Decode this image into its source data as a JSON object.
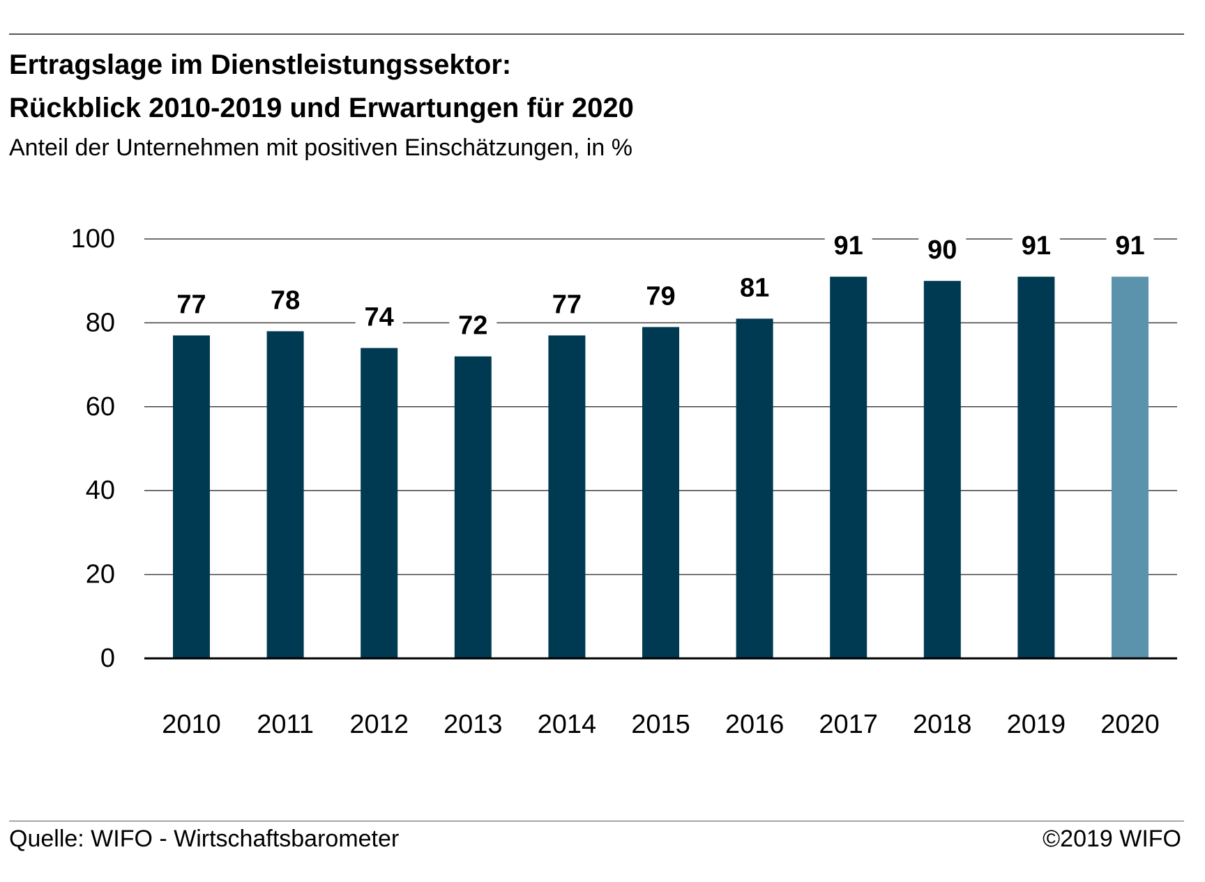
{
  "header": {
    "title_line1": "Ertragslage im Dienstleistungssektor:",
    "title_line2": "Rückblick 2010-2019 und Erwartungen für 2020",
    "subtitle": "Anteil der Unternehmen mit positiven Einschätzungen, in %"
  },
  "footer": {
    "source": "Quelle: WIFO - Wirtschaftsbarometer",
    "copyright": "©2019 WIFO"
  },
  "colors": {
    "bar": "#003a52",
    "bar_forecast": "#5a93ab",
    "grid": "#404040",
    "axis": "#000000",
    "text": "#000000"
  },
  "chart_data": {
    "type": "bar",
    "title": "Ertragslage im Dienstleistungssektor: Rückblick 2010-2019 und Erwartungen für 2020",
    "subtitle": "Anteil der Unternehmen mit positiven Einschätzungen, in %",
    "xlabel": "",
    "ylabel": "",
    "categories": [
      "2010",
      "2011",
      "2012",
      "2013",
      "2014",
      "2015",
      "2016",
      "2017",
      "2018",
      "2019",
      "2020"
    ],
    "values": [
      77,
      78,
      74,
      72,
      77,
      79,
      81,
      91,
      90,
      91,
      91
    ],
    "data_labels": [
      "77",
      "78",
      "74",
      "72",
      "77",
      "79",
      "81",
      "91",
      "90",
      "91",
      "91"
    ],
    "highlight_index": 10,
    "ylim": [
      0,
      100
    ],
    "yticks": [
      0,
      20,
      40,
      60,
      80,
      100
    ],
    "ytick_labels": [
      "0",
      "20",
      "40",
      "60",
      "80",
      "100"
    ],
    "grid": true,
    "legend": "none"
  }
}
